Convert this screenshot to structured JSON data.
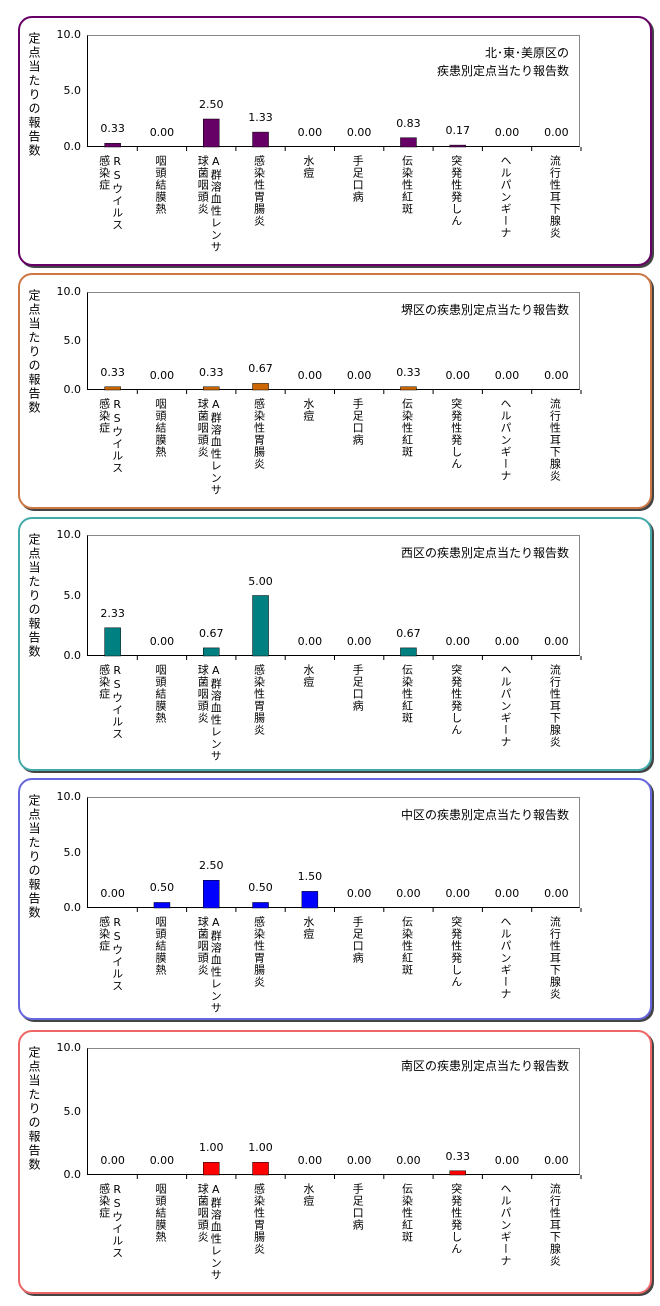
{
  "chart_data": [
    {
      "type": "bar",
      "title": "北･東･美原区の\n疾患別定点当たり報告数",
      "ylabel": "定点当たりの報告数",
      "ylim": [
        0,
        10
      ],
      "yticks": [
        "0.0",
        "5.0",
        "10.0"
      ],
      "color": "#660066",
      "border": "#660066",
      "categories": [
        "RSウイルス\n感染症",
        "咽頭結膜熱",
        "A群溶血性レンサ\n球菌咽頭炎",
        "感染性胃腸炎",
        "水痘",
        "手足口病",
        "伝染性紅斑",
        "突発性発しん",
        "ヘルパンギーナ",
        "流行性耳下腺炎"
      ],
      "values": [
        0.33,
        0,
        2.5,
        1.33,
        0,
        0,
        0.83,
        0.17,
        0,
        0
      ],
      "labels": [
        "0.33",
        "0.00",
        "2.50",
        "1.33",
        "0.00",
        "0.00",
        "0.83",
        "0.17",
        "0.00",
        "0.00"
      ]
    },
    {
      "type": "bar",
      "title": "堺区の疾患別定点当たり報告数",
      "ylabel": "定点当たりの報告数",
      "ylim": [
        0,
        10
      ],
      "yticks": [
        "0.0",
        "5.0",
        "10.0"
      ],
      "color": "#cc6600",
      "border": "#cc7744",
      "categories": [
        "RSウイルス\n感染症",
        "咽頭結膜熱",
        "A群溶血性レンサ\n球菌咽頭炎",
        "感染性胃腸炎",
        "水痘",
        "手足口病",
        "伝染性紅斑",
        "突発性発しん",
        "ヘルパンギーナ",
        "流行性耳下腺炎"
      ],
      "values": [
        0.33,
        0,
        0.33,
        0.67,
        0,
        0,
        0.33,
        0,
        0,
        0
      ],
      "labels": [
        "0.33",
        "0.00",
        "0.33",
        "0.67",
        "0.00",
        "0.00",
        "0.33",
        "0.00",
        "0.00",
        "0.00"
      ]
    },
    {
      "type": "bar",
      "title": "西区の疾患別定点当たり報告数",
      "ylabel": "定点当たりの報告数",
      "ylim": [
        0,
        10
      ],
      "yticks": [
        "0.0",
        "5.0",
        "10.0"
      ],
      "color": "#008080",
      "border": "#44aaaa",
      "categories": [
        "RSウイルス\n感染症",
        "咽頭結膜熱",
        "A群溶血性レンサ\n球菌咽頭炎",
        "感染性胃腸炎",
        "水痘",
        "手足口病",
        "伝染性紅斑",
        "突発性発しん",
        "ヘルパンギーナ",
        "流行性耳下腺炎"
      ],
      "values": [
        2.33,
        0,
        0.67,
        5,
        0,
        0,
        0.67,
        0,
        0,
        0
      ],
      "labels": [
        "2.33",
        "0.00",
        "0.67",
        "5.00",
        "0.00",
        "0.00",
        "0.67",
        "0.00",
        "0.00",
        "0.00"
      ]
    },
    {
      "type": "bar",
      "title": "中区の疾患別定点当たり報告数",
      "ylabel": "定点当たりの報告数",
      "ylim": [
        0,
        10
      ],
      "yticks": [
        "0.0",
        "5.0",
        "10.0"
      ],
      "color": "#0000ff",
      "border": "#6666dd",
      "categories": [
        "RSウイルス\n感染症",
        "咽頭結膜熱",
        "A群溶血性レンサ\n球菌咽頭炎",
        "感染性胃腸炎",
        "水痘",
        "手足口病",
        "伝染性紅斑",
        "突発性発しん",
        "ヘルパンギーナ",
        "流行性耳下腺炎"
      ],
      "values": [
        0,
        0.5,
        2.5,
        0.5,
        1.5,
        0,
        0,
        0,
        0,
        0
      ],
      "labels": [
        "0.00",
        "0.50",
        "2.50",
        "0.50",
        "1.50",
        "0.00",
        "0.00",
        "0.00",
        "0.00",
        "0.00"
      ]
    },
    {
      "type": "bar",
      "title": "南区の疾患別定点当たり報告数",
      "ylabel": "定点当たりの報告数",
      "ylim": [
        0,
        10
      ],
      "yticks": [
        "0.0",
        "5.0",
        "10.0"
      ],
      "color": "#ff0000",
      "border": "#ee6666",
      "categories": [
        "RSウイルス\n感染症",
        "咽頭結膜熱",
        "A群溶血性レンサ\n球菌咽頭炎",
        "感染性胃腸炎",
        "水痘",
        "手足口病",
        "伝染性紅斑",
        "突発性発しん",
        "ヘルパンギーナ",
        "流行性耳下腺炎"
      ],
      "values": [
        0,
        0,
        1,
        1,
        0,
        0,
        0,
        0.33,
        0,
        0
      ],
      "labels": [
        "0.00",
        "0.00",
        "1.00",
        "1.00",
        "0.00",
        "0.00",
        "0.00",
        "0.33",
        "0.00",
        "0.00"
      ]
    }
  ]
}
